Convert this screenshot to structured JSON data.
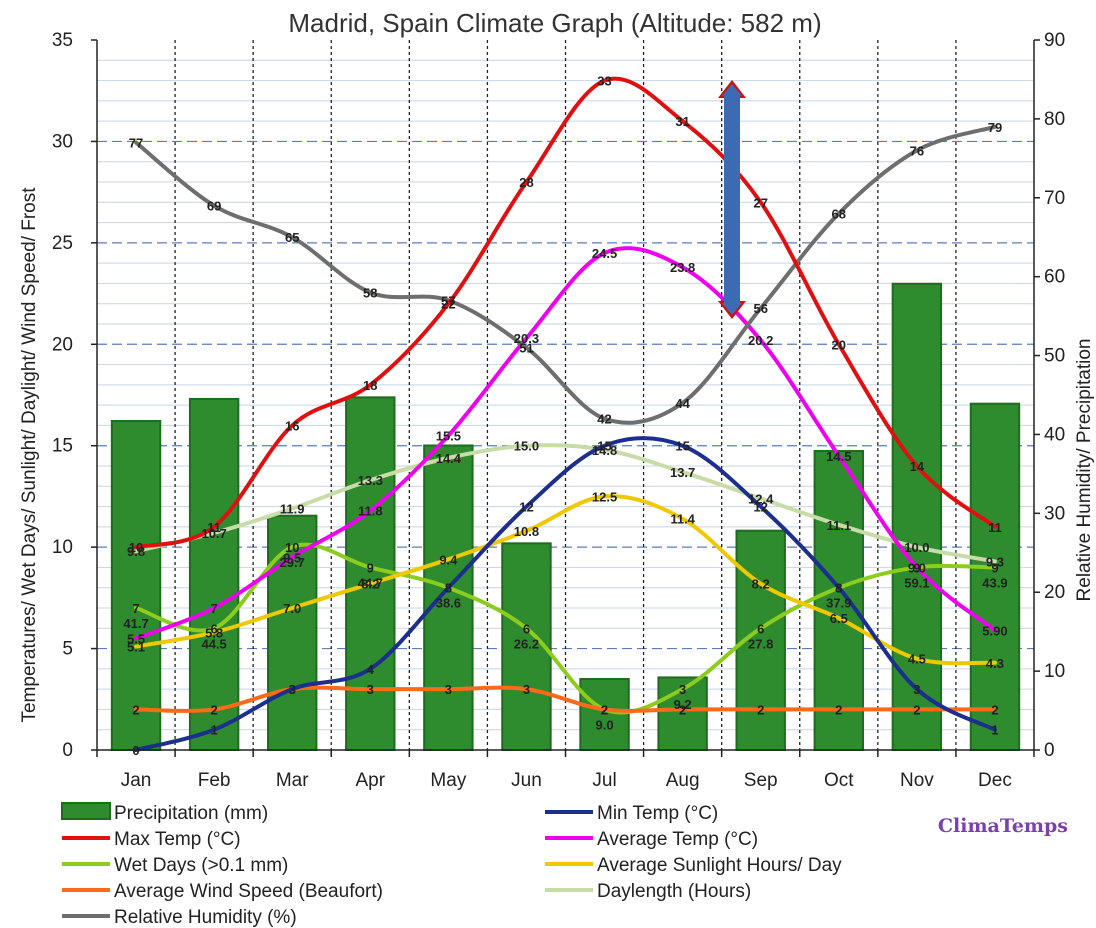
{
  "chart_data": {
    "type": "bar+line",
    "title": "Madrid, Spain Climate Graph (Altitude: 582 m)",
    "ylabel_left": "Temperatures/ Wet Days/ Sunlight/ Daylight/ Wind Speed/ Frost",
    "ylabel_right": "Relative Humidity/ Precipitation",
    "ylim_left": [
      0,
      35
    ],
    "ylim_right": [
      0,
      90
    ],
    "yticks_left": [
      0,
      5,
      10,
      15,
      20,
      25,
      30,
      35
    ],
    "yticks_right": [
      0,
      10,
      20,
      30,
      40,
      50,
      60,
      70,
      80,
      90
    ],
    "categories": [
      "Jan",
      "Feb",
      "Mar",
      "Apr",
      "May",
      "Jun",
      "Jul",
      "Aug",
      "Sep",
      "Oct",
      "Nov",
      "Dec"
    ],
    "grid": true,
    "legend_position": "bottom",
    "brand": "ClimaTemps",
    "series": [
      {
        "name": "Precipitation (mm)",
        "kind": "bar",
        "axis": "right",
        "color": "#2e8b2e",
        "values": [
          41.7,
          44.5,
          29.7,
          44.7,
          38.6,
          26.2,
          9.0,
          9.2,
          27.8,
          37.9,
          59.1,
          43.9
        ],
        "labels": [
          "41.7",
          "44.5",
          "29.7",
          "44.7",
          "38.6",
          "26.2",
          "9.0",
          "9.2",
          "27.8",
          "37.9",
          "59.1",
          "43.9"
        ]
      },
      {
        "name": "Min Temp (°C)",
        "kind": "line",
        "axis": "left",
        "color": "#1c2f8e",
        "values": [
          0,
          1,
          3,
          4,
          8,
          12,
          15,
          15,
          12,
          8,
          3,
          1
        ],
        "labels": [
          "0",
          "1",
          "3",
          "4",
          "8",
          "12",
          "15",
          "15",
          "12",
          "8",
          "3",
          "1"
        ]
      },
      {
        "name": "Max Temp (°C)",
        "kind": "line",
        "axis": "left",
        "color": "#e01010",
        "values": [
          10,
          11,
          16,
          18,
          22,
          28,
          33,
          31,
          27,
          20,
          14,
          11
        ],
        "labels": [
          "10",
          "11",
          "16",
          "18",
          "22",
          "28",
          "33",
          "31",
          "27",
          "20",
          "14",
          "11"
        ]
      },
      {
        "name": "Average Temp (°C)",
        "kind": "line",
        "axis": "left",
        "color": "#ee00ee",
        "values": [
          5.5,
          7,
          9.5,
          11.8,
          15.5,
          20.3,
          24.5,
          23.8,
          20.2,
          14.5,
          9.0,
          5.9
        ],
        "labels": [
          "5.5",
          "7",
          "9.5",
          "11.8",
          "15.5",
          "20.3",
          "24.5",
          "23.8",
          "20.2",
          "14.5",
          "9.0",
          "5.90"
        ]
      },
      {
        "name": "Wet Days (>0.1 mm)",
        "kind": "line",
        "axis": "left",
        "color": "#8ccc1e",
        "values": [
          7,
          6,
          10,
          9,
          8,
          6,
          2,
          3,
          6,
          8,
          9,
          9
        ],
        "labels": [
          "7",
          "6",
          "10",
          "9",
          "8",
          "6",
          "2",
          "3",
          "6",
          "8",
          "9",
          "9"
        ]
      },
      {
        "name": "Average Sunlight Hours/ Day",
        "kind": "line",
        "axis": "left",
        "color": "#f0c800",
        "values": [
          5.1,
          5.8,
          7.0,
          8.2,
          9.4,
          10.8,
          12.5,
          11.4,
          8.2,
          6.5,
          4.5,
          4.3
        ],
        "labels": [
          "5.1",
          "5.8",
          "7.0",
          "8.2",
          "9.4",
          "10.8",
          "12.5",
          "11.4",
          "8.2",
          "6.5",
          "4.5",
          "4.3"
        ]
      },
      {
        "name": "Average Wind Speed (Beaufort)",
        "kind": "line",
        "axis": "left",
        "color": "#ff6a1a",
        "values": [
          2,
          2,
          3,
          3,
          3,
          3,
          2,
          2,
          2,
          2,
          2,
          2
        ],
        "labels": [
          "2",
          "2",
          "3",
          "3",
          "3",
          "3",
          "2",
          "2",
          "2",
          "2",
          "2",
          "2"
        ]
      },
      {
        "name": "Daylength (Hours)",
        "kind": "line",
        "axis": "left",
        "color": "#c8dca8",
        "values": [
          9.8,
          10.7,
          11.9,
          13.3,
          14.4,
          15.0,
          14.8,
          13.7,
          12.4,
          11.1,
          10.0,
          9.3
        ],
        "labels": [
          "9.8",
          "10.7",
          "11.9",
          "13.3",
          "14.4",
          "15.0",
          "14.8",
          "13.7",
          "12.4",
          "11.1",
          "10.0",
          "9.3"
        ]
      },
      {
        "name": "Relative Humidity (%)",
        "kind": "line",
        "axis": "right",
        "color": "#6e6e6e",
        "values": [
          77,
          69,
          65,
          58,
          57,
          51,
          42,
          44,
          56,
          68,
          76,
          79
        ],
        "labels": [
          "77",
          "69",
          "65",
          "58",
          "57",
          "51",
          "42",
          "44",
          "56",
          "68",
          "76",
          "79"
        ]
      }
    ]
  }
}
